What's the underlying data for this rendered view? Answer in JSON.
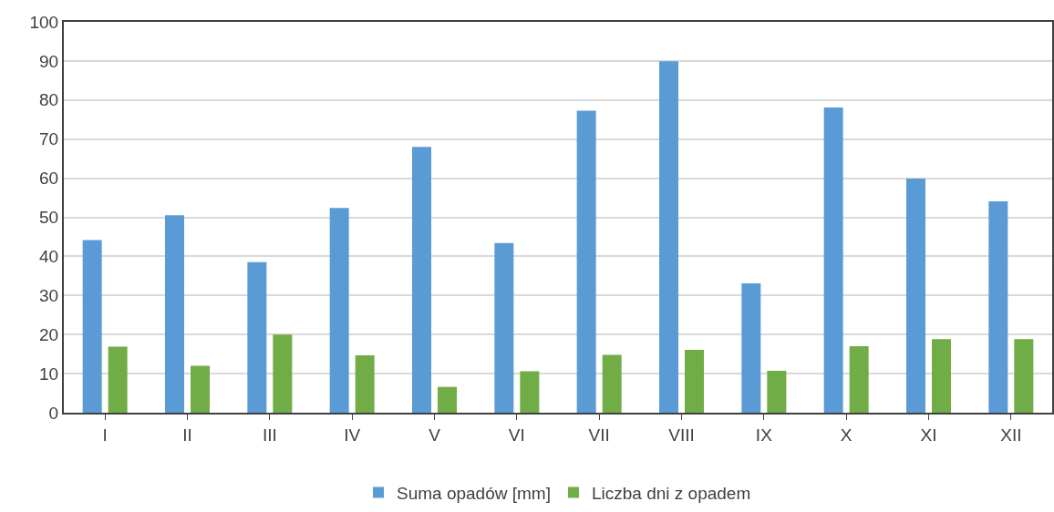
{
  "chart_data": {
    "type": "bar",
    "categories": [
      "I",
      "II",
      "III",
      "IV",
      "V",
      "VI",
      "VII",
      "VIII",
      "IX",
      "X",
      "XI",
      "XII"
    ],
    "series": [
      {
        "name": "Suma opadów [mm]",
        "color": "#5b9bd5",
        "values": [
          44.2,
          50.5,
          38.5,
          52.4,
          68.0,
          43.4,
          77.3,
          89.9,
          33.1,
          78.1,
          59.9,
          54.1
        ]
      },
      {
        "name": "Liczba dni z opadem",
        "color": "#70ad47",
        "values": [
          16.9,
          12.0,
          20.0,
          14.7,
          6.6,
          10.6,
          14.8,
          16.1,
          10.7,
          17.0,
          18.8,
          18.8
        ]
      }
    ],
    "ylim": [
      0,
      100
    ],
    "yticks": [
      0,
      10,
      20,
      30,
      40,
      50,
      60,
      70,
      80,
      90,
      100
    ],
    "grid": "y",
    "legend": "bottom"
  }
}
